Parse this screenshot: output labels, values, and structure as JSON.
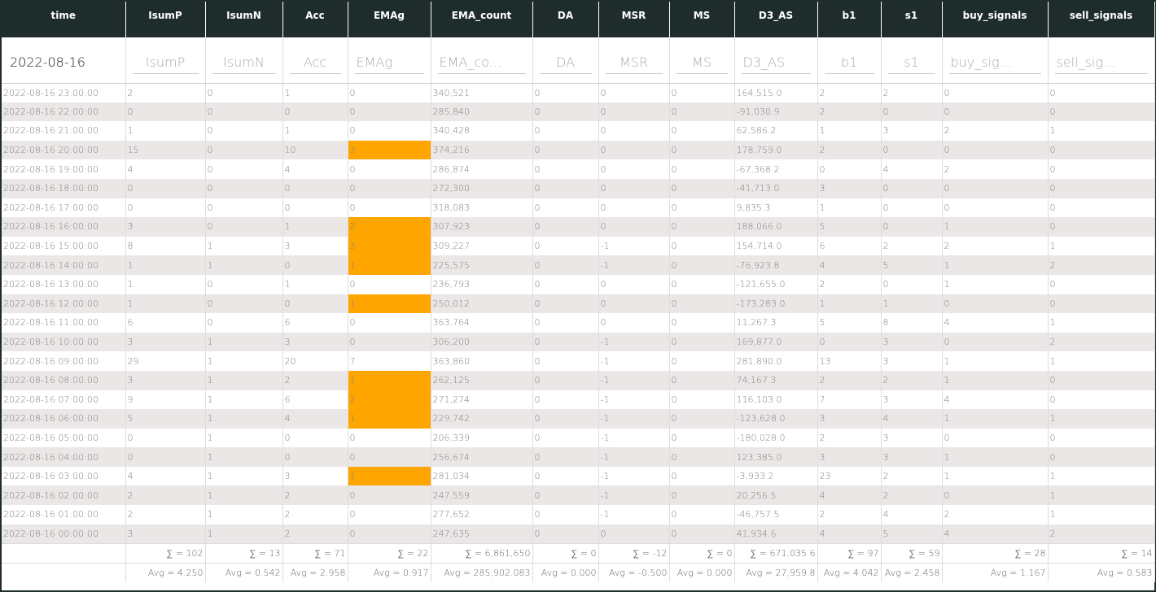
{
  "table": {
    "columns": [
      "time",
      "IsumP",
      "IsumN",
      "Acc",
      "EMAg",
      "EMA_count",
      "DA",
      "MSR",
      "MS",
      "D3_AS",
      "b1",
      "s1",
      "buy_signals",
      "sell_signals"
    ],
    "filters": [
      "2022-08-16",
      "IsumP",
      "IsumN",
      "Acc",
      "EMAg",
      "EMA_co...",
      "DA",
      "MSR",
      "MS",
      "D3_AS",
      "b1",
      "s1",
      "buy_sig...",
      "sell_sig..."
    ],
    "rows": [
      [
        "2022-08-16 23:00:00",
        "2",
        "0",
        "1",
        "0",
        "340,521",
        "0",
        "0",
        "0",
        "164,515.0",
        "2",
        "2",
        "0",
        "0"
      ],
      [
        "2022-08-16 22:00:00",
        "0",
        "0",
        "0",
        "0",
        "285,840",
        "0",
        "0",
        "0",
        "-91,030.9",
        "2",
        "0",
        "0",
        "0"
      ],
      [
        "2022-08-16 21:00:00",
        "1",
        "0",
        "1",
        "0",
        "340,428",
        "0",
        "0",
        "0",
        "62,586.2",
        "1",
        "3",
        "2",
        "1"
      ],
      [
        "2022-08-16 20:00:00",
        "15",
        "0",
        "10",
        "3",
        "374,216",
        "0",
        "0",
        "0",
        "178,759.0",
        "2",
        "0",
        "0",
        "0"
      ],
      [
        "2022-08-16 19:00:00",
        "4",
        "0",
        "4",
        "0",
        "286,874",
        "0",
        "0",
        "0",
        "-67,368.2",
        "0",
        "4",
        "2",
        "0"
      ],
      [
        "2022-08-16 18:00:00",
        "0",
        "0",
        "0",
        "0",
        "272,300",
        "0",
        "0",
        "0",
        "-41,713.0",
        "3",
        "0",
        "0",
        "0"
      ],
      [
        "2022-08-16 17:00:00",
        "0",
        "0",
        "0",
        "0",
        "318,083",
        "0",
        "0",
        "0",
        "9,835.3",
        "1",
        "0",
        "0",
        "0"
      ],
      [
        "2022-08-16 16:00:00",
        "3",
        "0",
        "1",
        "2",
        "307,923",
        "0",
        "0",
        "0",
        "188,066.0",
        "5",
        "0",
        "1",
        "0"
      ],
      [
        "2022-08-16 15:00:00",
        "8",
        "1",
        "3",
        "3",
        "309,227",
        "0",
        "-1",
        "0",
        "154,714.0",
        "6",
        "2",
        "2",
        "1"
      ],
      [
        "2022-08-16 14:00:00",
        "1",
        "1",
        "0",
        "1",
        "225,575",
        "0",
        "-1",
        "0",
        "-76,923.8",
        "4",
        "5",
        "1",
        "2"
      ],
      [
        "2022-08-16 13:00:00",
        "1",
        "0",
        "1",
        "0",
        "236,793",
        "0",
        "0",
        "0",
        "-121,655.0",
        "2",
        "0",
        "1",
        "0"
      ],
      [
        "2022-08-16 12:00:00",
        "1",
        "0",
        "0",
        "1",
        "250,012",
        "0",
        "0",
        "0",
        "-173,283.0",
        "1",
        "1",
        "0",
        "0"
      ],
      [
        "2022-08-16 11:00:00",
        "6",
        "0",
        "6",
        "0",
        "363,764",
        "0",
        "0",
        "0",
        "11,267.3",
        "5",
        "8",
        "4",
        "1"
      ],
      [
        "2022-08-16 10:00:00",
        "3",
        "1",
        "3",
        "0",
        "306,200",
        "0",
        "-1",
        "0",
        "169,877.0",
        "0",
        "3",
        "0",
        "2"
      ],
      [
        "2022-08-16 09:00:00",
        "29",
        "1",
        "20",
        "7",
        "363,860",
        "0",
        "-1",
        "0",
        "281,890.0",
        "13",
        "3",
        "1",
        "1"
      ],
      [
        "2022-08-16 08:00:00",
        "3",
        "1",
        "2",
        "1",
        "262,125",
        "0",
        "-1",
        "0",
        "74,167.3",
        "2",
        "2",
        "1",
        "0"
      ],
      [
        "2022-08-16 07:00:00",
        "9",
        "1",
        "6",
        "2",
        "271,274",
        "0",
        "-1",
        "0",
        "116,103.0",
        "7",
        "3",
        "4",
        "0"
      ],
      [
        "2022-08-16 06:00:00",
        "5",
        "1",
        "4",
        "1",
        "229,742",
        "0",
        "-1",
        "0",
        "-123,628.0",
        "3",
        "4",
        "1",
        "1"
      ],
      [
        "2022-08-16 05:00:00",
        "0",
        "1",
        "0",
        "0",
        "206,339",
        "0",
        "-1",
        "0",
        "-180,028.0",
        "2",
        "3",
        "0",
        "0"
      ],
      [
        "2022-08-16 04:00:00",
        "0",
        "1",
        "0",
        "0",
        "256,674",
        "0",
        "-1",
        "0",
        "123,385.0",
        "3",
        "3",
        "1",
        "0"
      ],
      [
        "2022-08-16 03:00:00",
        "4",
        "1",
        "3",
        "1",
        "281,034",
        "0",
        "-1",
        "0",
        "-3,933.2",
        "23",
        "2",
        "1",
        "1"
      ],
      [
        "2022-08-16 02:00:00",
        "2",
        "1",
        "2",
        "0",
        "247,559",
        "0",
        "-1",
        "0",
        "20,256.5",
        "4",
        "2",
        "0",
        "1"
      ],
      [
        "2022-08-16 01:00:00",
        "2",
        "1",
        "2",
        "0",
        "277,652",
        "0",
        "-1",
        "0",
        "-46,757.5",
        "2",
        "4",
        "2",
        "1"
      ],
      [
        "2022-08-16 00:00:00",
        "3",
        "1",
        "2",
        "0",
        "247,635",
        "0",
        "0",
        "0",
        "41,934.6",
        "4",
        "5",
        "4",
        "2"
      ]
    ],
    "sums": [
      "∑ = 102",
      "∑ = 13",
      "∑ = 71",
      "∑ = 22",
      "∑ = 6,861,650",
      "∑ = 0",
      "∑ = -12",
      "∑ = 0",
      "∑ = 671,035.6",
      "∑ = 97",
      "∑ = 59",
      "∑ = 28",
      "∑ = 14"
    ],
    "averages": [
      "Avg = 4.250",
      "Avg = 0.542",
      "Avg = 2.958",
      "Avg = 0.917",
      "Avg = 285,902.083",
      "Avg = 0.000",
      "Avg = -0.500",
      "Avg = 0.000",
      "Avg = 27,959.8",
      "Avg = 4.042",
      "Avg = 2.458",
      "Avg = 1.167",
      "Avg = 0.583"
    ],
    "highlight": {
      "column": 4,
      "rows": [
        3,
        7,
        8,
        9,
        11,
        15,
        16,
        17,
        20
      ],
      "color": "#ffa500"
    }
  }
}
